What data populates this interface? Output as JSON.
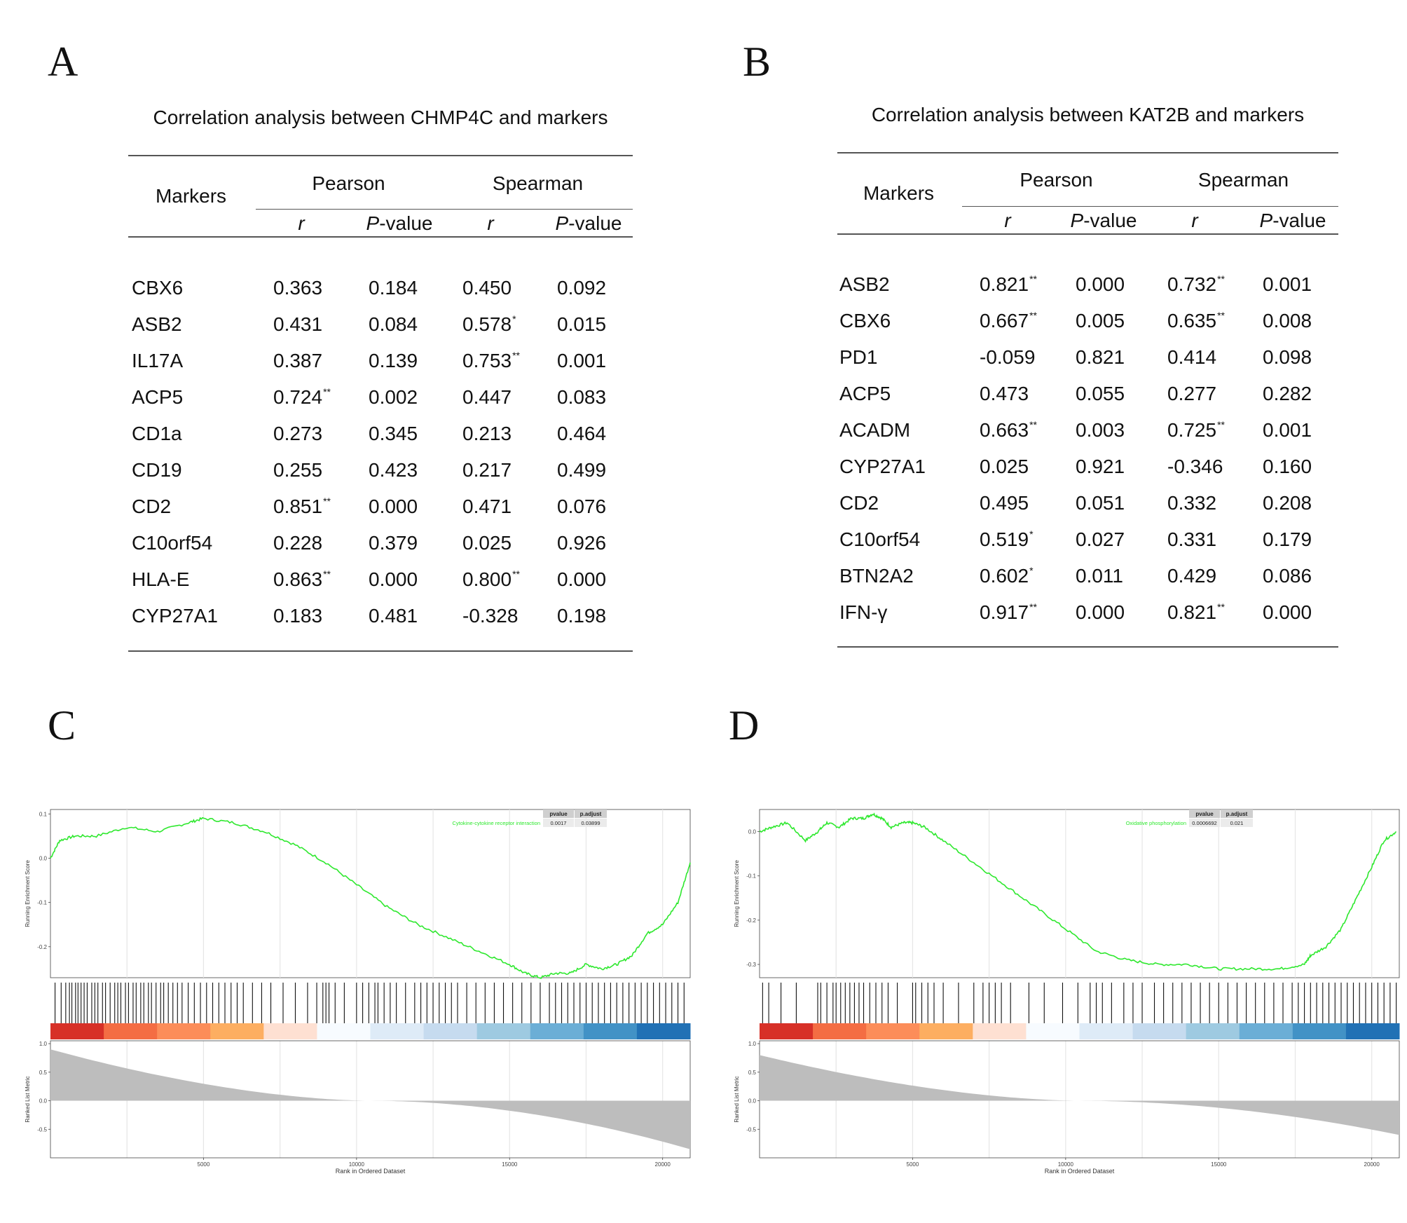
{
  "panels": {
    "A": {
      "letter": "A",
      "title": "Correlation analysis between CHMP4C and markers",
      "head": {
        "markers": "Markers",
        "pearson": "Pearson",
        "spearman": "Spearman",
        "r": "r",
        "p": "P",
        "pvalue": "-value"
      },
      "rows": [
        {
          "marker": "CBX6",
          "pr": "0.363",
          "prs": "",
          "pp": "0.184",
          "sr": "0.450",
          "srs": "",
          "sp": "0.092"
        },
        {
          "marker": "ASB2",
          "pr": "0.431",
          "prs": "",
          "pp": "0.084",
          "sr": "0.578",
          "srs": "*",
          "sp": "0.015"
        },
        {
          "marker": "IL17A",
          "pr": "0.387",
          "prs": "",
          "pp": "0.139",
          "sr": "0.753",
          "srs": "**",
          "sp": "0.001"
        },
        {
          "marker": "ACP5",
          "pr": "0.724",
          "prs": "**",
          "pp": "0.002",
          "sr": "0.447",
          "srs": "",
          "sp": "0.083"
        },
        {
          "marker": "CD1a",
          "pr": "0.273",
          "prs": "",
          "pp": "0.345",
          "sr": "0.213",
          "srs": "",
          "sp": "0.464"
        },
        {
          "marker": "CD19",
          "pr": "0.255",
          "prs": "",
          "pp": "0.423",
          "sr": "0.217",
          "srs": "",
          "sp": "0.499"
        },
        {
          "marker": "CD2",
          "pr": "0.851",
          "prs": "**",
          "pp": "0.000",
          "sr": "0.471",
          "srs": "",
          "sp": "0.076"
        },
        {
          "marker": "C10orf54",
          "pr": "0.228",
          "prs": "",
          "pp": "0.379",
          "sr": "0.025",
          "srs": "",
          "sp": "0.926"
        },
        {
          "marker": "HLA-E",
          "pr": "0.863",
          "prs": "**",
          "pp": "0.000",
          "sr": "0.800",
          "srs": "**",
          "sp": "0.000"
        },
        {
          "marker": "CYP27A1",
          "pr": "0.183",
          "prs": "",
          "pp": "0.481",
          "sr": "-0.328",
          "srs": "",
          "sp": "0.198"
        }
      ]
    },
    "B": {
      "letter": "B",
      "title": "Correlation analysis between KAT2B and markers",
      "head": {
        "markers": "Markers",
        "pearson": "Pearson",
        "spearman": "Spearman",
        "r": "r",
        "p": "P",
        "pvalue": "-value"
      },
      "rows": [
        {
          "marker": "ASB2",
          "pr": "0.821",
          "prs": "**",
          "pp": "0.000",
          "sr": "0.732",
          "srs": "**",
          "sp": "0.001"
        },
        {
          "marker": "CBX6",
          "pr": "0.667",
          "prs": "**",
          "pp": "0.005",
          "sr": "0.635",
          "srs": "**",
          "sp": "0.008"
        },
        {
          "marker": "PD1",
          "pr": "-0.059",
          "prs": "",
          "pp": "0.821",
          "sr": "0.414",
          "srs": "",
          "sp": "0.098"
        },
        {
          "marker": "ACP5",
          "pr": "0.473",
          "prs": "",
          "pp": "0.055",
          "sr": "0.277",
          "srs": "",
          "sp": "0.282"
        },
        {
          "marker": "ACADM",
          "pr": "0.663",
          "prs": "**",
          "pp": "0.003",
          "sr": "0.725",
          "srs": "**",
          "sp": "0.001"
        },
        {
          "marker": "CYP27A1",
          "pr": "0.025",
          "prs": "",
          "pp": "0.921",
          "sr": "-0.346",
          "srs": "",
          "sp": "0.160"
        },
        {
          "marker": "CD2",
          "pr": "0.495",
          "prs": "",
          "pp": "0.051",
          "sr": "0.332",
          "srs": "",
          "sp": "0.208"
        },
        {
          "marker": "C10orf54",
          "pr": "0.519",
          "prs": "*",
          "pp": "0.027",
          "sr": "0.331",
          "srs": "",
          "sp": "0.179"
        },
        {
          "marker": "BTN2A2",
          "pr": "0.602",
          "prs": "*",
          "pp": "0.011",
          "sr": "0.429",
          "srs": "",
          "sp": "0.086"
        },
        {
          "marker": "IFN-γ",
          "pr": "0.917",
          "prs": "**",
          "pp": "0.000",
          "sr": "0.821",
          "srs": "**",
          "sp": "0.000"
        }
      ]
    },
    "C": {
      "letter": "C"
    },
    "D": {
      "letter": "D"
    }
  },
  "chart_data": [
    {
      "type": "line",
      "panel": "C",
      "title": "",
      "series": [
        {
          "name": "Cytokine-cytokine receptor interaction",
          "color": "#2ee82e"
        }
      ],
      "ylabel": "Running Enrichment Score",
      "yticks": [
        "0.1",
        "0.0",
        "-0.1",
        "-0.2"
      ],
      "ylim": [
        -0.27,
        0.11
      ],
      "running_es": {
        "x": [
          0,
          300,
          800,
          1500,
          2500,
          3500,
          4500,
          5000,
          6000,
          7000,
          8000,
          9000,
          10000,
          11000,
          12000,
          13000,
          14000,
          15000,
          15500,
          16000,
          16500,
          17000,
          17500,
          18000,
          18500,
          19000,
          19500,
          20000,
          20500,
          20900
        ],
        "y": [
          0.0,
          0.04,
          0.05,
          0.05,
          0.07,
          0.06,
          0.08,
          0.09,
          0.08,
          0.06,
          0.03,
          -0.01,
          -0.06,
          -0.11,
          -0.15,
          -0.18,
          -0.21,
          -0.24,
          -0.26,
          -0.27,
          -0.26,
          -0.26,
          -0.24,
          -0.25,
          -0.24,
          -0.22,
          -0.17,
          -0.15,
          -0.1,
          -0.01
        ]
      },
      "hit_positions": [
        150,
        350,
        500,
        620,
        700,
        820,
        900,
        1000,
        1100,
        1200,
        1350,
        1450,
        1550,
        1700,
        1800,
        1950,
        2100,
        2200,
        2300,
        2450,
        2550,
        2700,
        2800,
        2950,
        3050,
        3200,
        3300,
        3450,
        3600,
        3700,
        3850,
        4000,
        4150,
        4300,
        4500,
        4700,
        4900,
        5100,
        5300,
        5500,
        5700,
        5900,
        6100,
        6300,
        6600,
        6900,
        7200,
        7600,
        8000,
        8400,
        8700,
        8900,
        9000,
        9100,
        9300,
        9600,
        10000,
        10200,
        10400,
        10600,
        10700,
        10900,
        11100,
        11300,
        11600,
        11900,
        12100,
        12300,
        12500,
        12700,
        12900,
        13100,
        13300,
        13600,
        13900,
        14200,
        14500,
        14800,
        15100,
        15400,
        15700,
        16000,
        16300,
        16500,
        16700,
        16900,
        17100,
        17300,
        17500,
        17700,
        17900,
        18100,
        18300,
        18500,
        18700,
        18900,
        19100,
        19300,
        19500,
        19700,
        19900,
        20100,
        20300,
        20500,
        20700
      ],
      "ranked_metric": {
        "yticks": [
          "1.0",
          "0.5",
          "0.0",
          "-0.5"
        ],
        "ylabel": "Ranked List Metric",
        "start": 0.9,
        "end": -0.85
      },
      "xlabel": "Rank in Ordered Dataset",
      "xticks": [
        "5000",
        "10000",
        "15000",
        "20000"
      ],
      "xlim": [
        0,
        20900
      ],
      "table": {
        "headers": [
          "pvalue",
          "p.adjust"
        ],
        "label": "Cytokine-cytokine receptor interaction",
        "values": [
          "0.0017",
          "0.03899"
        ]
      }
    },
    {
      "type": "line",
      "panel": "D",
      "title": "",
      "series": [
        {
          "name": "Oxidative phosphorylation",
          "color": "#2ee82e"
        }
      ],
      "ylabel": "Running Enrichment Score",
      "yticks": [
        "0.0",
        "-0.1",
        "-0.2",
        "-0.3"
      ],
      "ylim": [
        -0.33,
        0.05
      ],
      "running_es": {
        "x": [
          0,
          400,
          900,
          1500,
          1900,
          2200,
          2600,
          3000,
          3400,
          3700,
          4000,
          4300,
          4700,
          5000,
          5400,
          6000,
          7000,
          8000,
          9000,
          10000,
          11000,
          12000,
          13000,
          14000,
          15000,
          16000,
          17000,
          17800,
          18000,
          18500,
          19000,
          19500,
          20000,
          20400,
          20800
        ],
        "y": [
          0.0,
          0.01,
          0.02,
          -0.02,
          0.0,
          0.02,
          0.01,
          0.03,
          0.03,
          0.04,
          0.03,
          0.01,
          0.02,
          0.02,
          0.01,
          -0.02,
          -0.07,
          -0.12,
          -0.17,
          -0.22,
          -0.27,
          -0.29,
          -0.3,
          -0.3,
          -0.31,
          -0.31,
          -0.31,
          -0.3,
          -0.28,
          -0.26,
          -0.22,
          -0.15,
          -0.08,
          -0.02,
          0.0
        ]
      },
      "hit_positions": [
        100,
        300,
        700,
        1200,
        1900,
        2000,
        2200,
        2400,
        2500,
        2650,
        2800,
        2950,
        3100,
        3250,
        3400,
        3600,
        3800,
        4000,
        4200,
        4500,
        5000,
        5100,
        5300,
        5500,
        5700,
        6000,
        6500,
        7000,
        7300,
        7500,
        7700,
        7900,
        8200,
        8800,
        9300,
        9900,
        10400,
        10800,
        11000,
        11200,
        11500,
        11900,
        12200,
        12500,
        12900,
        13200,
        13500,
        13800,
        14100,
        14400,
        14700,
        15000,
        15300,
        15600,
        15900,
        16200,
        16500,
        16800,
        17100,
        17400,
        17600,
        17800,
        18000,
        18200,
        18400,
        18600,
        18800,
        19000,
        19200,
        19400,
        19600,
        19800,
        20000,
        20200,
        20400,
        20600,
        20800
      ],
      "ranked_metric": {
        "yticks": [
          "1.0",
          "0.5",
          "0.0",
          "-0.5"
        ],
        "ylabel": "Ranked List Metric",
        "start": 0.8,
        "end": -0.6
      },
      "xlabel": "Rank in Ordered Dataset",
      "xticks": [
        "5000",
        "10000",
        "15000",
        "20000"
      ],
      "xlim": [
        0,
        20900
      ],
      "table": {
        "headers": [
          "pvalue",
          "p.adjust"
        ],
        "label": "Oxidative phosphorylation",
        "values": [
          "0.0006692",
          "0.021"
        ]
      }
    }
  ]
}
